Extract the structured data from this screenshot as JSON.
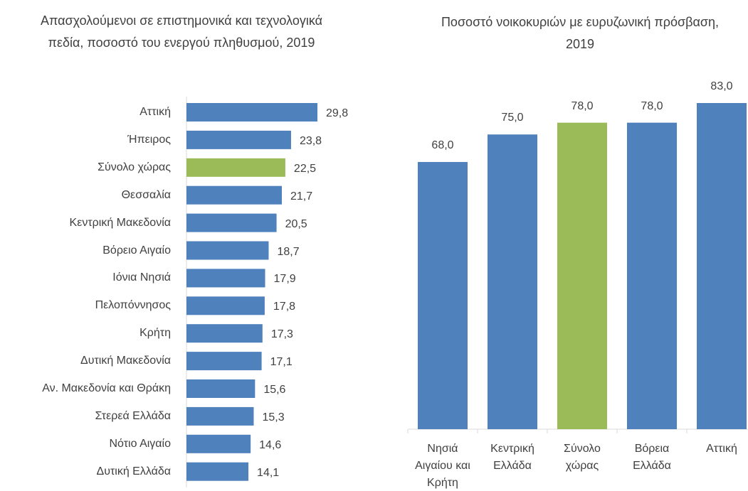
{
  "chart_data": [
    {
      "type": "bar",
      "orientation": "horizontal",
      "title": "Απασχολούμενοι σε επιστημονικά και τεχνολογικά πεδία, ποσοστό του ενεργού πληθυσμού, 2019",
      "categories": [
        "Αττική",
        "Ήπειρος",
        "Σύνολο χώρας",
        "Θεσσαλία",
        "Κεντρική Μακεδονία",
        "Βόρειο Αιγαίο",
        "Ιόνια Νησιά",
        "Πελοπόννησος",
        "Κρήτη",
        "Δυτική Μακεδονία",
        "Αν. Μακεδονία και Θράκη",
        "Στερεά Ελλάδα",
        "Νότιο Αιγαίο",
        "Δυτική Ελλάδα"
      ],
      "values": [
        29.8,
        23.8,
        22.5,
        21.7,
        20.5,
        18.7,
        17.9,
        17.8,
        17.3,
        17.1,
        15.6,
        15.3,
        14.6,
        14.1
      ],
      "value_labels": [
        "29,8",
        "23,8",
        "22,5",
        "21,7",
        "20,5",
        "18,7",
        "17,9",
        "17,8",
        "17,3",
        "17,1",
        "15,6",
        "15,3",
        "14,6",
        "14,1"
      ],
      "colors": [
        "#4f81bd",
        "#4f81bd",
        "#9bbb59",
        "#4f81bd",
        "#4f81bd",
        "#4f81bd",
        "#4f81bd",
        "#4f81bd",
        "#4f81bd",
        "#4f81bd",
        "#4f81bd",
        "#4f81bd",
        "#4f81bd",
        "#4f81bd"
      ]
    },
    {
      "type": "bar",
      "orientation": "vertical",
      "title": "Ποσοστό νοικοκυριών με ευρυζωνική πρόσβαση, 2019",
      "categories": [
        "Νησιά Αιγαίου και Κρήτη",
        "Κεντρική Ελλάδα",
        "Σύνολο χώρας",
        "Βόρεια Ελλάδα",
        "Αττική"
      ],
      "values": [
        68.0,
        75.0,
        78.0,
        78.0,
        83.0
      ],
      "value_labels": [
        "68,0",
        "75,0",
        "78,0",
        "78,0",
        "83,0"
      ],
      "colors": [
        "#4f81bd",
        "#4f81bd",
        "#9bbb59",
        "#4f81bd",
        "#4f81bd"
      ]
    }
  ]
}
